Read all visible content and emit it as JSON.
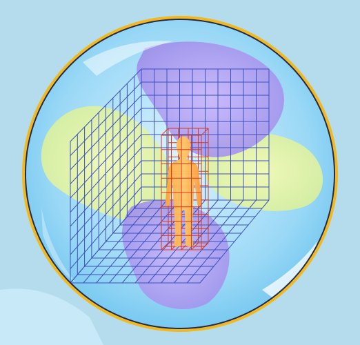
{
  "colors": {
    "background": "#b4dcec",
    "rim": "#f3b81b",
    "rim_outline": "#1b2a5c",
    "grid": "#3d4fbf",
    "human_grid": "#d83a1a",
    "human_figure": "#ffb347",
    "swirl_yellow": "#eef59a",
    "swirl_violet": "#b59cf2",
    "sphere_blue": "#8fd2f4"
  },
  "icons": {
    "sphere": "sphere-icon",
    "figure": "human-figure-icon",
    "grid": "grid-cube-icon"
  }
}
